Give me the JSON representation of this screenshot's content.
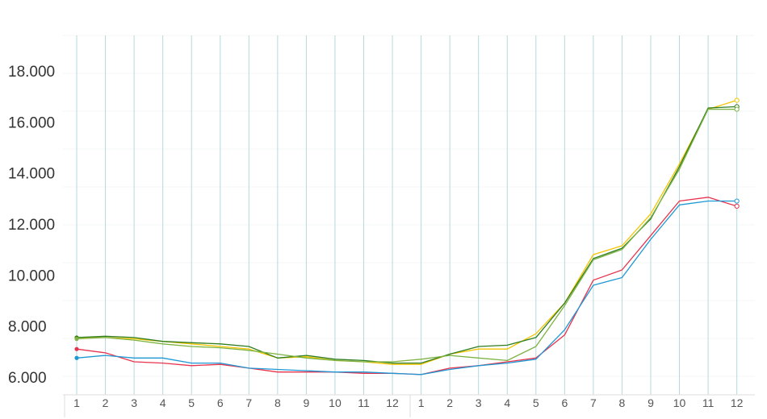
{
  "chart_data": {
    "type": "line",
    "title": "",
    "xlabel": "",
    "ylabel": "",
    "y_tick_labels": [
      {
        "value": 6000,
        "label": "6.000"
      },
      {
        "value": 8000,
        "label": "8.000"
      },
      {
        "value": 10000,
        "label": "10.000"
      },
      {
        "value": 12000,
        "label": "12.000"
      },
      {
        "value": 14000,
        "label": "14.000"
      },
      {
        "value": 16000,
        "label": "16.000"
      },
      {
        "value": 18000,
        "label": "18.000"
      }
    ],
    "ylim": [
      6000,
      18000
    ],
    "grid": "vertical",
    "legend": "none",
    "categories": [
      "1",
      "2",
      "3",
      "4",
      "5",
      "6",
      "7",
      "8",
      "9",
      "10",
      "11",
      "12",
      "1",
      "2",
      "3",
      "4",
      "5",
      "6",
      "7",
      "8",
      "9",
      "10",
      "11",
      "12"
    ],
    "series": [
      {
        "color": "#f5c400",
        "values": [
          7550,
          7550,
          7500,
          7400,
          7300,
          7200,
          7100,
          6750,
          6800,
          6650,
          6600,
          6500,
          6500,
          6900,
          7100,
          7100,
          7700,
          8900,
          10800,
          11150,
          12400,
          14350,
          16500,
          16850
        ]
      },
      {
        "color": "#2e7d1e",
        "values": [
          7550,
          7600,
          7550,
          7400,
          7350,
          7300,
          7200,
          6750,
          6850,
          6700,
          6650,
          6550,
          6550,
          6900,
          7200,
          7250,
          7550,
          8900,
          10650,
          11050,
          12200,
          14250,
          16550,
          16600
        ]
      },
      {
        "color": "#7cb342",
        "values": [
          7500,
          7550,
          7450,
          7300,
          7200,
          7150,
          7050,
          6900,
          6750,
          6650,
          6600,
          6600,
          6700,
          6850,
          6750,
          6650,
          7200,
          8800,
          10600,
          11000,
          12250,
          14150,
          16500,
          16500
        ]
      },
      {
        "color": "#e8334d",
        "values": [
          7100,
          6950,
          6600,
          6550,
          6450,
          6500,
          6350,
          6200,
          6200,
          6200,
          6150,
          6150,
          6100,
          6350,
          6450,
          6600,
          6750,
          7650,
          9800,
          10200,
          11550,
          12900,
          13050,
          12700
        ]
      },
      {
        "color": "#1e98d4",
        "values": [
          6750,
          6850,
          6750,
          6750,
          6550,
          6550,
          6350,
          6300,
          6250,
          6200,
          6200,
          6150,
          6100,
          6300,
          6450,
          6550,
          6700,
          7850,
          9600,
          9900,
          11400,
          12750,
          12900,
          12900
        ]
      }
    ]
  }
}
